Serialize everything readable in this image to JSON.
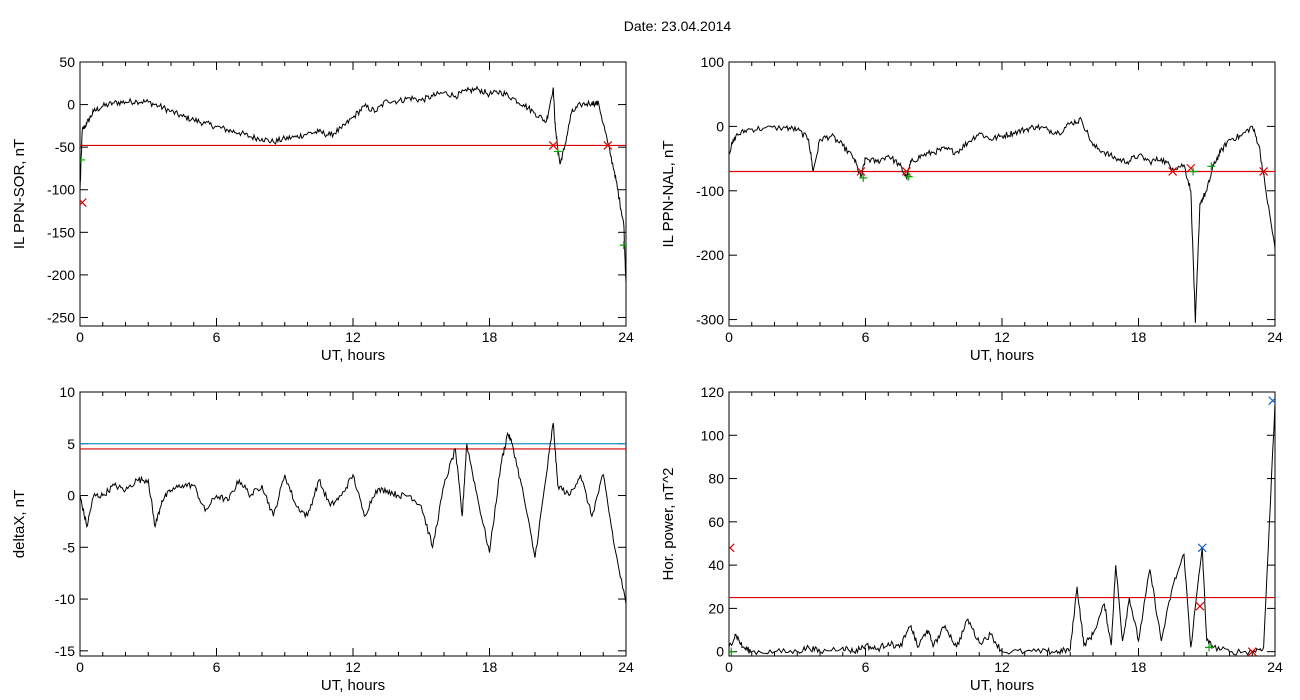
{
  "title": "Date:  23.04.2014",
  "colors": {
    "trace": "#000000",
    "threshold": "#dd0000",
    "threshold2": "#1e90c8",
    "highlight": "#1060d0",
    "marker_red": "#dd0000",
    "marker_green": "#00aa00",
    "marker_blue": "#1060d0"
  },
  "chart_data": [
    {
      "id": "ppn-sor",
      "type": "line",
      "ylabel": "IL PPN-SOR, nT",
      "xlabel": "UT, hours",
      "xlim": [
        0,
        24
      ],
      "ylim": [
        -260,
        50
      ],
      "xticks": [
        0,
        6,
        12,
        18,
        24
      ],
      "yticks": [
        50,
        0,
        -50,
        -100,
        -150,
        -200,
        -250
      ],
      "thresholds": [
        {
          "y": -48,
          "color": "#dd0000"
        }
      ],
      "series": [
        {
          "points": [
            [
              0,
              -100
            ],
            [
              0.1,
              -30
            ],
            [
              0.3,
              -22
            ],
            [
              0.6,
              -8
            ],
            [
              1,
              -2
            ],
            [
              1.5,
              2
            ],
            [
              2,
              3
            ],
            [
              2.5,
              4
            ],
            [
              3,
              3
            ],
            [
              3.5,
              -2
            ],
            [
              4,
              -8
            ],
            [
              4.5,
              -14
            ],
            [
              5,
              -18
            ],
            [
              5.5,
              -22
            ],
            [
              6,
              -26
            ],
            [
              6.5,
              -30
            ],
            [
              7,
              -33
            ],
            [
              7.5,
              -38
            ],
            [
              8,
              -40
            ],
            [
              8.5,
              -44
            ],
            [
              9,
              -40
            ],
            [
              9.5,
              -38
            ],
            [
              10,
              -34
            ],
            [
              10.5,
              -32
            ],
            [
              11,
              -36
            ],
            [
              11.5,
              -28
            ],
            [
              12,
              -15
            ],
            [
              12.5,
              -2
            ],
            [
              13,
              -8
            ],
            [
              13.5,
              5
            ],
            [
              14,
              4
            ],
            [
              14.5,
              8
            ],
            [
              15,
              5
            ],
            [
              15.5,
              10
            ],
            [
              16,
              14
            ],
            [
              16.5,
              10
            ],
            [
              17,
              16
            ],
            [
              17.5,
              18
            ],
            [
              18,
              12
            ],
            [
              18.5,
              15
            ],
            [
              19,
              8
            ],
            [
              19.5,
              0
            ],
            [
              20,
              -10
            ],
            [
              20.5,
              -20
            ],
            [
              20.8,
              20
            ],
            [
              20.9,
              -30
            ],
            [
              21.1,
              -70
            ],
            [
              21.3,
              -50
            ],
            [
              21.6,
              -10
            ],
            [
              22,
              0
            ],
            [
              22.5,
              2
            ],
            [
              22.8,
              1
            ],
            [
              23.2,
              -45
            ],
            [
              23.5,
              -80
            ],
            [
              23.7,
              -110
            ],
            [
              23.9,
              -140
            ],
            [
              24,
              -210
            ]
          ]
        }
      ],
      "markers": [
        {
          "x": 0.05,
          "y": -65,
          "color": "#00aa00",
          "shape": "+"
        },
        {
          "x": 0.1,
          "y": -115,
          "color": "#dd0000",
          "shape": "x"
        },
        {
          "x": 20.8,
          "y": -48,
          "color": "#dd0000",
          "shape": "x"
        },
        {
          "x": 21.0,
          "y": -55,
          "color": "#00aa00",
          "shape": "+"
        },
        {
          "x": 23.2,
          "y": -48,
          "color": "#dd0000",
          "shape": "x"
        },
        {
          "x": 23.9,
          "y": -165,
          "color": "#00aa00",
          "shape": "+"
        }
      ]
    },
    {
      "id": "ppn-nal",
      "type": "line",
      "ylabel": "IL PPN-NAL, nT",
      "xlabel": "UT, hours",
      "xlim": [
        0,
        24
      ],
      "ylim": [
        -310,
        100
      ],
      "xticks": [
        0,
        6,
        12,
        18,
        24
      ],
      "yticks": [
        100,
        0,
        -100,
        -200,
        -300
      ],
      "thresholds": [
        {
          "y": -70,
          "color": "#dd0000"
        }
      ],
      "series": [
        {
          "points": [
            [
              0,
              -40
            ],
            [
              0.3,
              -15
            ],
            [
              0.8,
              -5
            ],
            [
              1.5,
              -3
            ],
            [
              2.5,
              -2
            ],
            [
              3,
              -5
            ],
            [
              3.5,
              -20
            ],
            [
              3.7,
              -70
            ],
            [
              4,
              -20
            ],
            [
              4.5,
              -15
            ],
            [
              5,
              -30
            ],
            [
              5.5,
              -50
            ],
            [
              5.8,
              -80
            ],
            [
              6,
              -50
            ],
            [
              6.5,
              -55
            ],
            [
              7,
              -45
            ],
            [
              7.5,
              -60
            ],
            [
              7.8,
              -80
            ],
            [
              8,
              -55
            ],
            [
              8.5,
              -45
            ],
            [
              9,
              -40
            ],
            [
              9.5,
              -35
            ],
            [
              10,
              -40
            ],
            [
              10.5,
              -25
            ],
            [
              11,
              -10
            ],
            [
              11.5,
              -20
            ],
            [
              12,
              -15
            ],
            [
              12.5,
              -10
            ],
            [
              13,
              -5
            ],
            [
              13.5,
              0
            ],
            [
              14,
              -5
            ],
            [
              14.5,
              -10
            ],
            [
              15,
              5
            ],
            [
              15.5,
              10
            ],
            [
              16,
              -30
            ],
            [
              16.5,
              -40
            ],
            [
              17,
              -50
            ],
            [
              17.5,
              -55
            ],
            [
              18,
              -45
            ],
            [
              18.5,
              -55
            ],
            [
              19,
              -50
            ],
            [
              19.5,
              -65
            ],
            [
              20,
              -60
            ],
            [
              20.3,
              -100
            ],
            [
              20.5,
              -305
            ],
            [
              20.7,
              -120
            ],
            [
              21,
              -100
            ],
            [
              21.3,
              -60
            ],
            [
              21.6,
              -40
            ],
            [
              22,
              -20
            ],
            [
              22.5,
              -15
            ],
            [
              23,
              0
            ],
            [
              23.3,
              -30
            ],
            [
              23.6,
              -100
            ],
            [
              24,
              -190
            ]
          ]
        }
      ],
      "markers": [
        {
          "x": 5.8,
          "y": -70,
          "color": "#dd0000",
          "shape": "x"
        },
        {
          "x": 5.9,
          "y": -80,
          "color": "#00aa00",
          "shape": "+"
        },
        {
          "x": 7.8,
          "y": -70,
          "color": "#dd0000",
          "shape": "x"
        },
        {
          "x": 7.9,
          "y": -78,
          "color": "#00aa00",
          "shape": "+"
        },
        {
          "x": 19.5,
          "y": -70,
          "color": "#dd0000",
          "shape": "x"
        },
        {
          "x": 20.3,
          "y": -65,
          "color": "#dd0000",
          "shape": "x"
        },
        {
          "x": 20.4,
          "y": -70,
          "color": "#00aa00",
          "shape": "+"
        },
        {
          "x": 21.2,
          "y": -62,
          "color": "#00aa00",
          "shape": "+"
        },
        {
          "x": 23.5,
          "y": -70,
          "color": "#dd0000",
          "shape": "x"
        }
      ]
    },
    {
      "id": "deltax",
      "type": "line",
      "ylabel": "deltaX, nT",
      "xlabel": "UT, hours",
      "xlim": [
        0,
        24
      ],
      "ylim": [
        -15.5,
        10
      ],
      "xticks": [
        0,
        6,
        12,
        18,
        24
      ],
      "yticks": [
        10,
        5,
        0,
        -5,
        -10,
        -15
      ],
      "thresholds": [
        {
          "y": 5.0,
          "color": "#1e90c8"
        },
        {
          "y": 4.5,
          "color": "#dd0000"
        }
      ],
      "series": [
        {
          "points": [
            [
              0,
              0
            ],
            [
              0.3,
              -3
            ],
            [
              0.6,
              0
            ],
            [
              1,
              0
            ],
            [
              1.5,
              1
            ],
            [
              2,
              0.5
            ],
            [
              2.5,
              1.5
            ],
            [
              3,
              1.5
            ],
            [
              3.3,
              -3
            ],
            [
              3.6,
              -0.5
            ],
            [
              4,
              0.5
            ],
            [
              4.5,
              1
            ],
            [
              5,
              1
            ],
            [
              5.5,
              -1.5
            ],
            [
              6,
              0
            ],
            [
              6.5,
              -0.5
            ],
            [
              7,
              1.5
            ],
            [
              7.5,
              0
            ],
            [
              8,
              1
            ],
            [
              8.5,
              -2
            ],
            [
              9,
              2
            ],
            [
              9.5,
              -1
            ],
            [
              10,
              -2
            ],
            [
              10.5,
              1.5
            ],
            [
              11,
              -1
            ],
            [
              11.5,
              0
            ],
            [
              12,
              2
            ],
            [
              12.5,
              -2
            ],
            [
              13,
              0.5
            ],
            [
              13.5,
              0.5
            ],
            [
              14,
              0
            ],
            [
              14.5,
              0
            ],
            [
              15,
              -1
            ],
            [
              15.5,
              -5
            ],
            [
              16,
              1
            ],
            [
              16.5,
              4.5
            ],
            [
              16.8,
              -2
            ],
            [
              17,
              5
            ],
            [
              17.5,
              -0.5
            ],
            [
              18,
              -5.5
            ],
            [
              18.5,
              3
            ],
            [
              18.8,
              6
            ],
            [
              19,
              5
            ],
            [
              19.5,
              0
            ],
            [
              20,
              -6
            ],
            [
              20.5,
              2
            ],
            [
              20.8,
              7
            ],
            [
              21,
              1
            ],
            [
              21.5,
              0
            ],
            [
              22,
              2
            ],
            [
              22.5,
              -2
            ],
            [
              23,
              2
            ],
            [
              23.5,
              -5
            ],
            [
              24,
              -10.5
            ]
          ]
        }
      ],
      "markers": []
    },
    {
      "id": "hor-power",
      "type": "line",
      "ylabel": "Hor. power, nT^2",
      "xlabel": "UT, hours",
      "xlim": [
        0,
        24
      ],
      "ylim": [
        -2,
        120
      ],
      "xticks": [
        0,
        6,
        12,
        18,
        24
      ],
      "yticks": [
        120,
        100,
        80,
        60,
        40,
        20,
        0
      ],
      "thresholds": [
        {
          "y": 25,
          "color": "#dd0000"
        }
      ],
      "series": [
        {
          "points": [
            [
              0,
              2
            ],
            [
              0.3,
              8
            ],
            [
              0.6,
              2
            ],
            [
              1,
              0
            ],
            [
              2,
              0
            ],
            [
              3,
              0
            ],
            [
              3.5,
              2
            ],
            [
              4,
              0
            ],
            [
              5,
              2
            ],
            [
              5.5,
              0
            ],
            [
              6,
              3
            ],
            [
              6.5,
              1
            ],
            [
              7,
              4
            ],
            [
              7.5,
              2
            ],
            [
              8,
              12
            ],
            [
              8.3,
              2
            ],
            [
              8.7,
              10
            ],
            [
              9,
              3
            ],
            [
              9.5,
              12
            ],
            [
              10,
              2
            ],
            [
              10.5,
              15
            ],
            [
              11,
              4
            ],
            [
              11.5,
              8
            ],
            [
              12,
              0
            ],
            [
              13,
              0
            ],
            [
              14,
              0
            ],
            [
              14.5,
              0
            ],
            [
              15,
              1
            ],
            [
              15.3,
              30
            ],
            [
              15.6,
              3
            ],
            [
              16,
              8
            ],
            [
              16.5,
              22
            ],
            [
              16.8,
              3
            ],
            [
              17,
              40
            ],
            [
              17.3,
              5
            ],
            [
              17.6,
              25
            ],
            [
              18,
              5
            ],
            [
              18.5,
              38
            ],
            [
              19,
              5
            ],
            [
              19.5,
              30
            ],
            [
              20,
              45
            ],
            [
              20.3,
              2
            ],
            [
              20.8,
              48
            ],
            [
              21,
              5
            ],
            [
              21.3,
              2
            ],
            [
              22,
              0
            ],
            [
              23,
              0
            ],
            [
              23.5,
              2
            ],
            [
              24,
              115
            ]
          ]
        }
      ],
      "markers": [
        {
          "x": 0.05,
          "y": 48,
          "color": "#dd0000",
          "shape": "x"
        },
        {
          "x": 0.1,
          "y": 0,
          "color": "#00aa00",
          "shape": "+"
        },
        {
          "x": 20.7,
          "y": 21,
          "color": "#dd0000",
          "shape": "x"
        },
        {
          "x": 20.8,
          "y": 48,
          "color": "#1060d0",
          "shape": "x"
        },
        {
          "x": 21.1,
          "y": 2,
          "color": "#00aa00",
          "shape": "+"
        },
        {
          "x": 23.0,
          "y": 0,
          "color": "#dd0000",
          "shape": "x"
        },
        {
          "x": 23.9,
          "y": 116,
          "color": "#1060d0",
          "shape": "x"
        }
      ]
    }
  ]
}
